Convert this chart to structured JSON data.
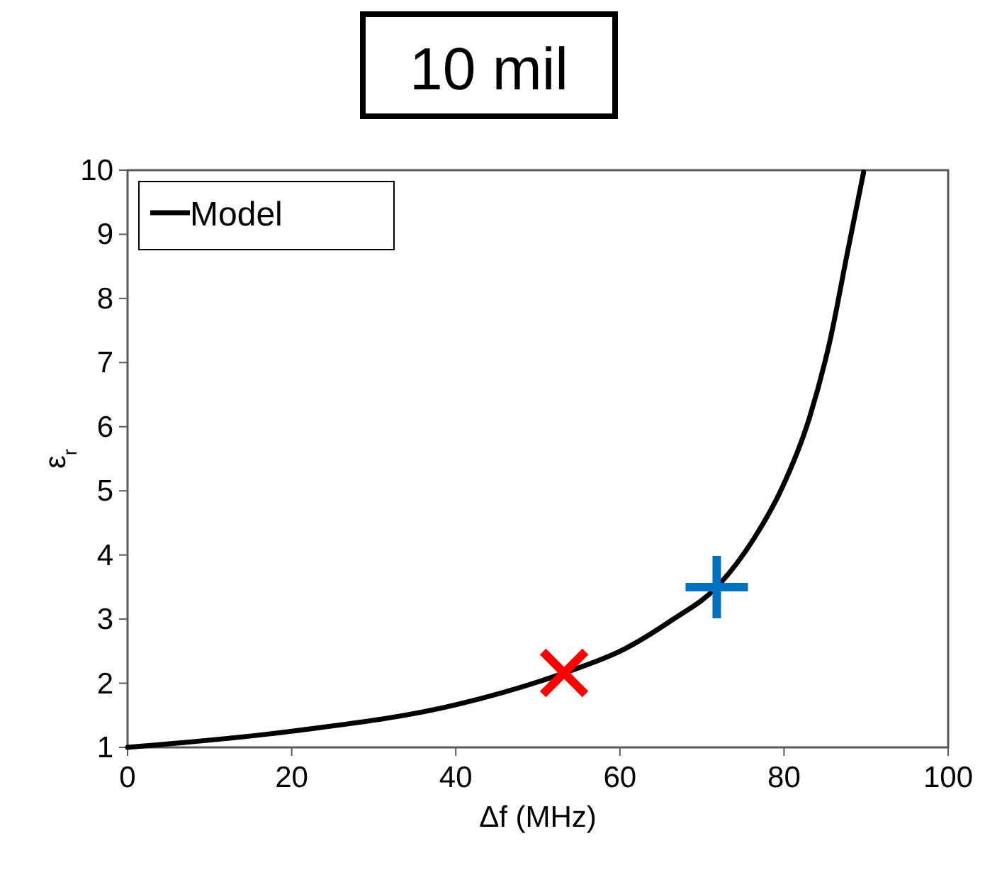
{
  "chart_data": {
    "type": "line",
    "title": "10 mil",
    "xlabel": "Δf (MHz)",
    "ylabel": "ε$_{r}$",
    "xlim": [
      0,
      100
    ],
    "xticks": [
      0,
      20,
      40,
      60,
      80,
      100
    ],
    "ylim": [
      1,
      10
    ],
    "yticks": [
      1,
      2,
      3,
      4,
      5,
      6,
      7,
      8,
      9,
      10
    ],
    "legend": "top left",
    "grid": false,
    "series": [
      {
        "name": "Model",
        "color": "#000000",
        "marker": "none",
        "line_style": "solid",
        "x": [
          0,
          19.9,
          40.2,
          53.2,
          60.5,
          66.4,
          71.8,
          76.4,
          79.7,
          83.1,
          85.7,
          87.7,
          89.7
        ],
        "values": [
          1,
          1.25,
          1.67,
          2.16,
          2.53,
          2.99,
          3.5,
          4.27,
          5.03,
          6.14,
          7.4,
          8.7,
          9.97
        ]
      },
      {
        "type": "scatter",
        "color": "#ff0000",
        "x": [
          53.2
        ],
        "values": [
          2.16
        ]
      },
      {
        "type": "scatter",
        "color": "#0070c0",
        "marker": "cross",
        "x": [
          71.8
        ],
        "values": [
          3.5
        ]
      }
    ]
  }
}
